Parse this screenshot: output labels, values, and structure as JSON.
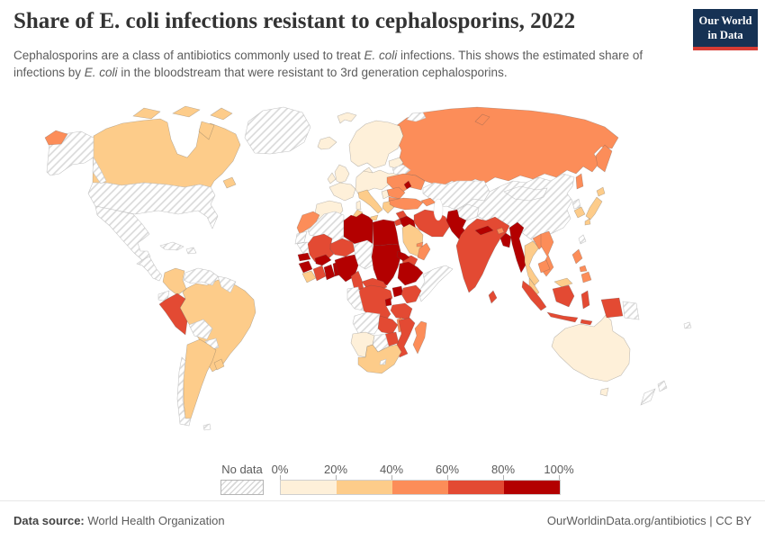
{
  "header": {
    "title": "Share of E. coli infections resistant to cephalosporins, 2022",
    "logo": {
      "line1": "Our World",
      "line2": "in Data",
      "bg_color": "#163254",
      "accent_color": "#d73c34"
    }
  },
  "subtitle_segments": [
    {
      "text": "Cephalosporins are a class of antibiotics commonly used to treat "
    },
    {
      "text": "E. coli",
      "italic": true
    },
    {
      "text": " infections. This shows the estimated share of infections by "
    },
    {
      "text": "E. coli",
      "italic": true
    },
    {
      "text": " in the bloodstream that were resistant to 3rd generation cephalosporins."
    }
  ],
  "legend": {
    "no_data_label": "No data",
    "tick_labels": [
      "0%",
      "20%",
      "40%",
      "60%",
      "80%",
      "100%"
    ],
    "bin_order": [
      "0-20",
      "20-40",
      "40-60",
      "60-80",
      "80-100"
    ]
  },
  "footer": {
    "datasource_label": "Data source:",
    "datasource_value": "World Health Organization",
    "link_text": "OurWorldinData.org/antibiotics",
    "license_suffix": " | CC BY"
  },
  "map": {
    "palette": {
      "0-20": "#fef0d9",
      "20-40": "#fdcc8a",
      "40-60": "#fc8d59",
      "60-80": "#e34a33",
      "80-100": "#b30000"
    },
    "no_data_color": "#d8d8d8",
    "countries": {
      "greenland": "no-data",
      "arctic-islands": "no-data",
      "alaska": "no-data",
      "usa": "no-data",
      "mexico": "no-data",
      "central-america": "no-data",
      "cuba": "no-data",
      "hispaniola": "no-data",
      "venezuela": "no-data",
      "guyanas": "no-data",
      "ecuador": "no-data",
      "bolivia": "no-data",
      "paraguay": "no-data",
      "chile": "no-data",
      "falkland-islands": "no-data",
      "belarus": "no-data",
      "kazakhstan-central-asia": "no-data",
      "china": "no-data",
      "mongolia": "no-data",
      "north-korea": "no-data",
      "taiwan": "no-data",
      "afghanistan": "no-data",
      "western-sahara": "no-data",
      "mauritania": "no-data",
      "algeria": "no-data",
      "chad": "no-data",
      "somalia": "no-data",
      "gabon-congo": "no-data",
      "angola": "no-data",
      "botswana": "no-data",
      "lesotho": "no-data",
      "papua-new-guinea": "no-data",
      "new-zealand": "no-data",
      "pacific-islands": "no-data",
      "iceland": "0-20",
      "svalbard": "0-20",
      "scandinavia": "0-20",
      "denmark": "0-20",
      "uk": "0-20",
      "ireland": "0-20",
      "france": "0-20",
      "iberia": "0-20",
      "central-europe": "0-20",
      "baltics": "0-20",
      "balkans": "0-20",
      "corsica-sardinia": "0-20",
      "namibia": "0-20",
      "australia": "0-20",
      "tasmania": "0-20",
      "canada": "20-40",
      "colombia": "20-40",
      "brazil": "20-40",
      "argentina": "20-40",
      "uruguay": "20-40",
      "italy": "20-40",
      "greece": "20-40",
      "saudi-arabia": "20-40",
      "south-africa": "20-40",
      "japan": "20-40",
      "south-korea": "20-40",
      "thailand": "20-40",
      "malaysia": "20-40",
      "sierra-leone-liberia": "20-40",
      "tunisia": "20-40",
      "russia": "40-60",
      "ukraine": "40-60",
      "romania": "40-60",
      "bulgaria": "40-60",
      "morocco": "40-60",
      "turkey": "40-60",
      "caucasus": "40-60",
      "oman": "40-60",
      "uae": "40-60",
      "vietnam": "40-60",
      "laos": "40-60",
      "cambodia": "40-60",
      "philippines": "40-60",
      "madagascar": "40-60",
      "malawi": "40-60",
      "bhutan": "40-60",
      "peru": "60-80",
      "mali": "60-80",
      "niger": "60-80",
      "ivory-coast": "60-80",
      "cameroon": "60-80",
      "central-african-republic": "60-80",
      "drc": "60-80",
      "kenya": "60-80",
      "tanzania": "60-80",
      "zambia": "60-80",
      "zimbabwe": "60-80",
      "mozambique": "60-80",
      "iran": "60-80",
      "syria": "60-80",
      "jordan": "60-80",
      "yemen": "60-80",
      "india": "60-80",
      "sri-lanka": "60-80",
      "indonesia": "60-80",
      "libya": "80-100",
      "egypt": "80-100",
      "sudan": "80-100",
      "eritrea": "80-100",
      "ethiopia": "80-100",
      "uganda": "80-100",
      "rwanda-burundi": "80-100",
      "senegal": "80-100",
      "guinea": "80-100",
      "burkina-faso": "80-100",
      "ghana": "80-100",
      "togo-benin": "80-100",
      "nigeria": "80-100",
      "iraq": "80-100",
      "pakistan": "80-100",
      "nepal": "80-100",
      "bangladesh": "80-100",
      "myanmar": "80-100",
      "moldova": "80-100"
    }
  }
}
